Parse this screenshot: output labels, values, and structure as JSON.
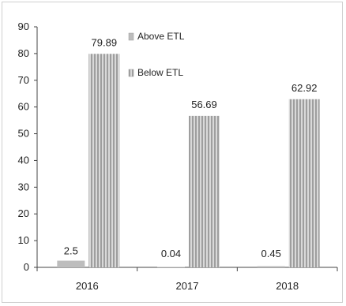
{
  "chart_data": {
    "type": "bar",
    "title": "",
    "xlabel": "",
    "ylabel": "",
    "categories": [
      "2016",
      "2017",
      "2018"
    ],
    "series": [
      {
        "name": "Above ETL",
        "values": [
          2.5,
          0.04,
          0.45
        ],
        "color": "#bdbdbd"
      },
      {
        "name": "Below ETL",
        "values": [
          79.89,
          56.69,
          62.92
        ],
        "color": "#b3b3b3"
      }
    ],
    "data_labels": [
      [
        "2.5",
        "0.04",
        "0.45"
      ],
      [
        "79.89",
        "56.69",
        "62.92"
      ]
    ],
    "ylim": [
      0,
      90
    ],
    "yticks": [
      "0",
      "10",
      "20",
      "30",
      "40",
      "50",
      "60",
      "70",
      "80",
      "90"
    ],
    "grid": false,
    "legend_position": "top-left inside plot"
  }
}
